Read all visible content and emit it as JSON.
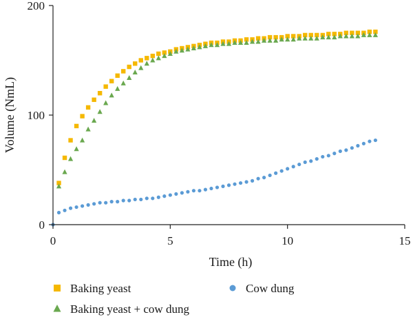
{
  "chart_data": {
    "type": "scatter",
    "xlabel": "Time (h)",
    "ylabel": "Volume (NmL)",
    "xlim": [
      0,
      15
    ],
    "ylim": [
      0,
      200
    ],
    "xticks": [
      "0",
      "5",
      "10",
      "15"
    ],
    "yticks": [
      "0",
      "100",
      "200"
    ],
    "grid": false,
    "legend": "bottom",
    "series": [
      {
        "name": "Baking yeast",
        "marker": "square",
        "color": "#f5b800",
        "x": [
          0.25,
          0.5,
          0.75,
          1.0,
          1.25,
          1.5,
          1.75,
          2.0,
          2.25,
          2.5,
          2.75,
          3.0,
          3.25,
          3.5,
          3.75,
          4.0,
          4.25,
          4.5,
          4.75,
          5.0,
          5.25,
          5.5,
          5.75,
          6.0,
          6.25,
          6.5,
          6.75,
          7.0,
          7.25,
          7.5,
          7.75,
          8.0,
          8.25,
          8.5,
          8.75,
          9.0,
          9.25,
          9.5,
          9.75,
          10.0,
          10.25,
          10.5,
          10.75,
          11.0,
          11.25,
          11.5,
          11.75,
          12.0,
          12.25,
          12.5,
          12.75,
          13.0,
          13.25,
          13.5,
          13.75
        ],
        "y": [
          38,
          61,
          77,
          90,
          99,
          107,
          114,
          120,
          126,
          131,
          136,
          140,
          144,
          147,
          150,
          152,
          154,
          156,
          157,
          158,
          160,
          161,
          162,
          163,
          164,
          165,
          166,
          166,
          167,
          167,
          168,
          168,
          169,
          169,
          170,
          170,
          171,
          171,
          171,
          172,
          172,
          172,
          173,
          173,
          173,
          173,
          174,
          174,
          174,
          175,
          175,
          175,
          175,
          176,
          176
        ]
      },
      {
        "name": "Baking yeast + cow dung",
        "marker": "triangle",
        "color": "#6aa84f",
        "x": [
          0.25,
          0.5,
          0.75,
          1.0,
          1.25,
          1.5,
          1.75,
          2.0,
          2.25,
          2.5,
          2.75,
          3.0,
          3.25,
          3.5,
          3.75,
          4.0,
          4.25,
          4.5,
          4.75,
          5.0,
          5.25,
          5.5,
          5.75,
          6.0,
          6.25,
          6.5,
          6.75,
          7.0,
          7.25,
          7.5,
          7.75,
          8.0,
          8.25,
          8.5,
          8.75,
          9.0,
          9.25,
          9.5,
          9.75,
          10.0,
          10.25,
          10.5,
          10.75,
          11.0,
          11.25,
          11.5,
          11.75,
          12.0,
          12.25,
          12.5,
          12.75,
          13.0,
          13.25,
          13.5,
          13.75
        ],
        "y": [
          35,
          48,
          60,
          69,
          77,
          87,
          95,
          103,
          111,
          118,
          124,
          129,
          134,
          139,
          143,
          147,
          150,
          152,
          154,
          156,
          158,
          159,
          160,
          161,
          162,
          163,
          164,
          164,
          165,
          165,
          166,
          166,
          166,
          167,
          167,
          168,
          168,
          168,
          169,
          169,
          169,
          170,
          170,
          170,
          170,
          171,
          171,
          171,
          172,
          172,
          172,
          172,
          173,
          173,
          173
        ]
      },
      {
        "name": "Cow dung",
        "marker": "circle",
        "color": "#5b9bd5",
        "x": [
          0.0,
          0.25,
          0.5,
          0.75,
          1.0,
          1.25,
          1.5,
          1.75,
          2.0,
          2.25,
          2.5,
          2.75,
          3.0,
          3.25,
          3.5,
          3.75,
          4.0,
          4.25,
          4.5,
          4.75,
          5.0,
          5.25,
          5.5,
          5.75,
          6.0,
          6.25,
          6.5,
          6.75,
          7.0,
          7.25,
          7.5,
          7.75,
          8.0,
          8.25,
          8.5,
          8.75,
          9.0,
          9.25,
          9.5,
          9.75,
          10.0,
          10.25,
          10.5,
          10.75,
          11.0,
          11.25,
          11.5,
          11.75,
          12.0,
          12.25,
          12.5,
          12.75,
          13.0,
          13.25,
          13.5,
          13.75
        ],
        "y": [
          0,
          11,
          13,
          15,
          16,
          17,
          18,
          19,
          20,
          20,
          21,
          21,
          22,
          22,
          23,
          23,
          24,
          24,
          25,
          26,
          27,
          28,
          29,
          30,
          31,
          31,
          32,
          33,
          34,
          35,
          36,
          37,
          38,
          39,
          40,
          42,
          43,
          45,
          47,
          49,
          51,
          53,
          55,
          57,
          58,
          60,
          62,
          63,
          65,
          67,
          68,
          70,
          72,
          74,
          76,
          77
        ]
      }
    ]
  }
}
